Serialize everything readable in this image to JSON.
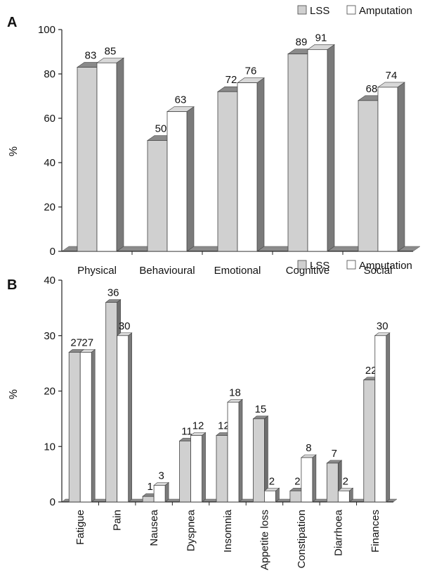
{
  "chart_data": [
    {
      "panel": "A",
      "type": "bar",
      "categories": [
        "Physical",
        "Behavioural",
        "Emotional",
        "Cognitive",
        "Social"
      ],
      "series": [
        {
          "name": "LSS",
          "values": [
            83,
            50,
            72,
            89,
            68
          ]
        },
        {
          "name": "Amputation",
          "values": [
            85,
            63,
            76,
            91,
            74
          ]
        }
      ],
      "ylabel": "%",
      "ylim": [
        0,
        100
      ],
      "yticks": [
        0,
        20,
        40,
        60,
        80,
        100
      ],
      "legend_position": "top-right",
      "grid": false
    },
    {
      "panel": "B",
      "type": "bar",
      "categories": [
        "Fatigue",
        "Pain",
        "Nausea",
        "Dyspnea",
        "Insomnia",
        "Appetite loss",
        "Constipation",
        "Diarrhoea",
        "Finances"
      ],
      "series": [
        {
          "name": "LSS",
          "values": [
            27,
            36,
            1,
            11,
            12,
            15,
            2,
            7,
            22
          ]
        },
        {
          "name": "Amputation",
          "values": [
            27,
            30,
            3,
            12,
            18,
            2,
            8,
            2,
            30
          ]
        }
      ],
      "ylabel": "%",
      "ylim": [
        0,
        40
      ],
      "yticks": [
        0,
        10,
        20,
        30,
        40
      ],
      "legend_position": "top-right",
      "grid": false
    }
  ],
  "colors": {
    "lss_front": "#d0d0d0",
    "lss_top": "#8a8a8a",
    "lss_side": "#6e6e6e",
    "amp_front": "#ffffff",
    "amp_top": "#d8d8d8",
    "amp_side": "#7a7a7a",
    "floor": "#8c8c8c",
    "axis": "#222222"
  }
}
